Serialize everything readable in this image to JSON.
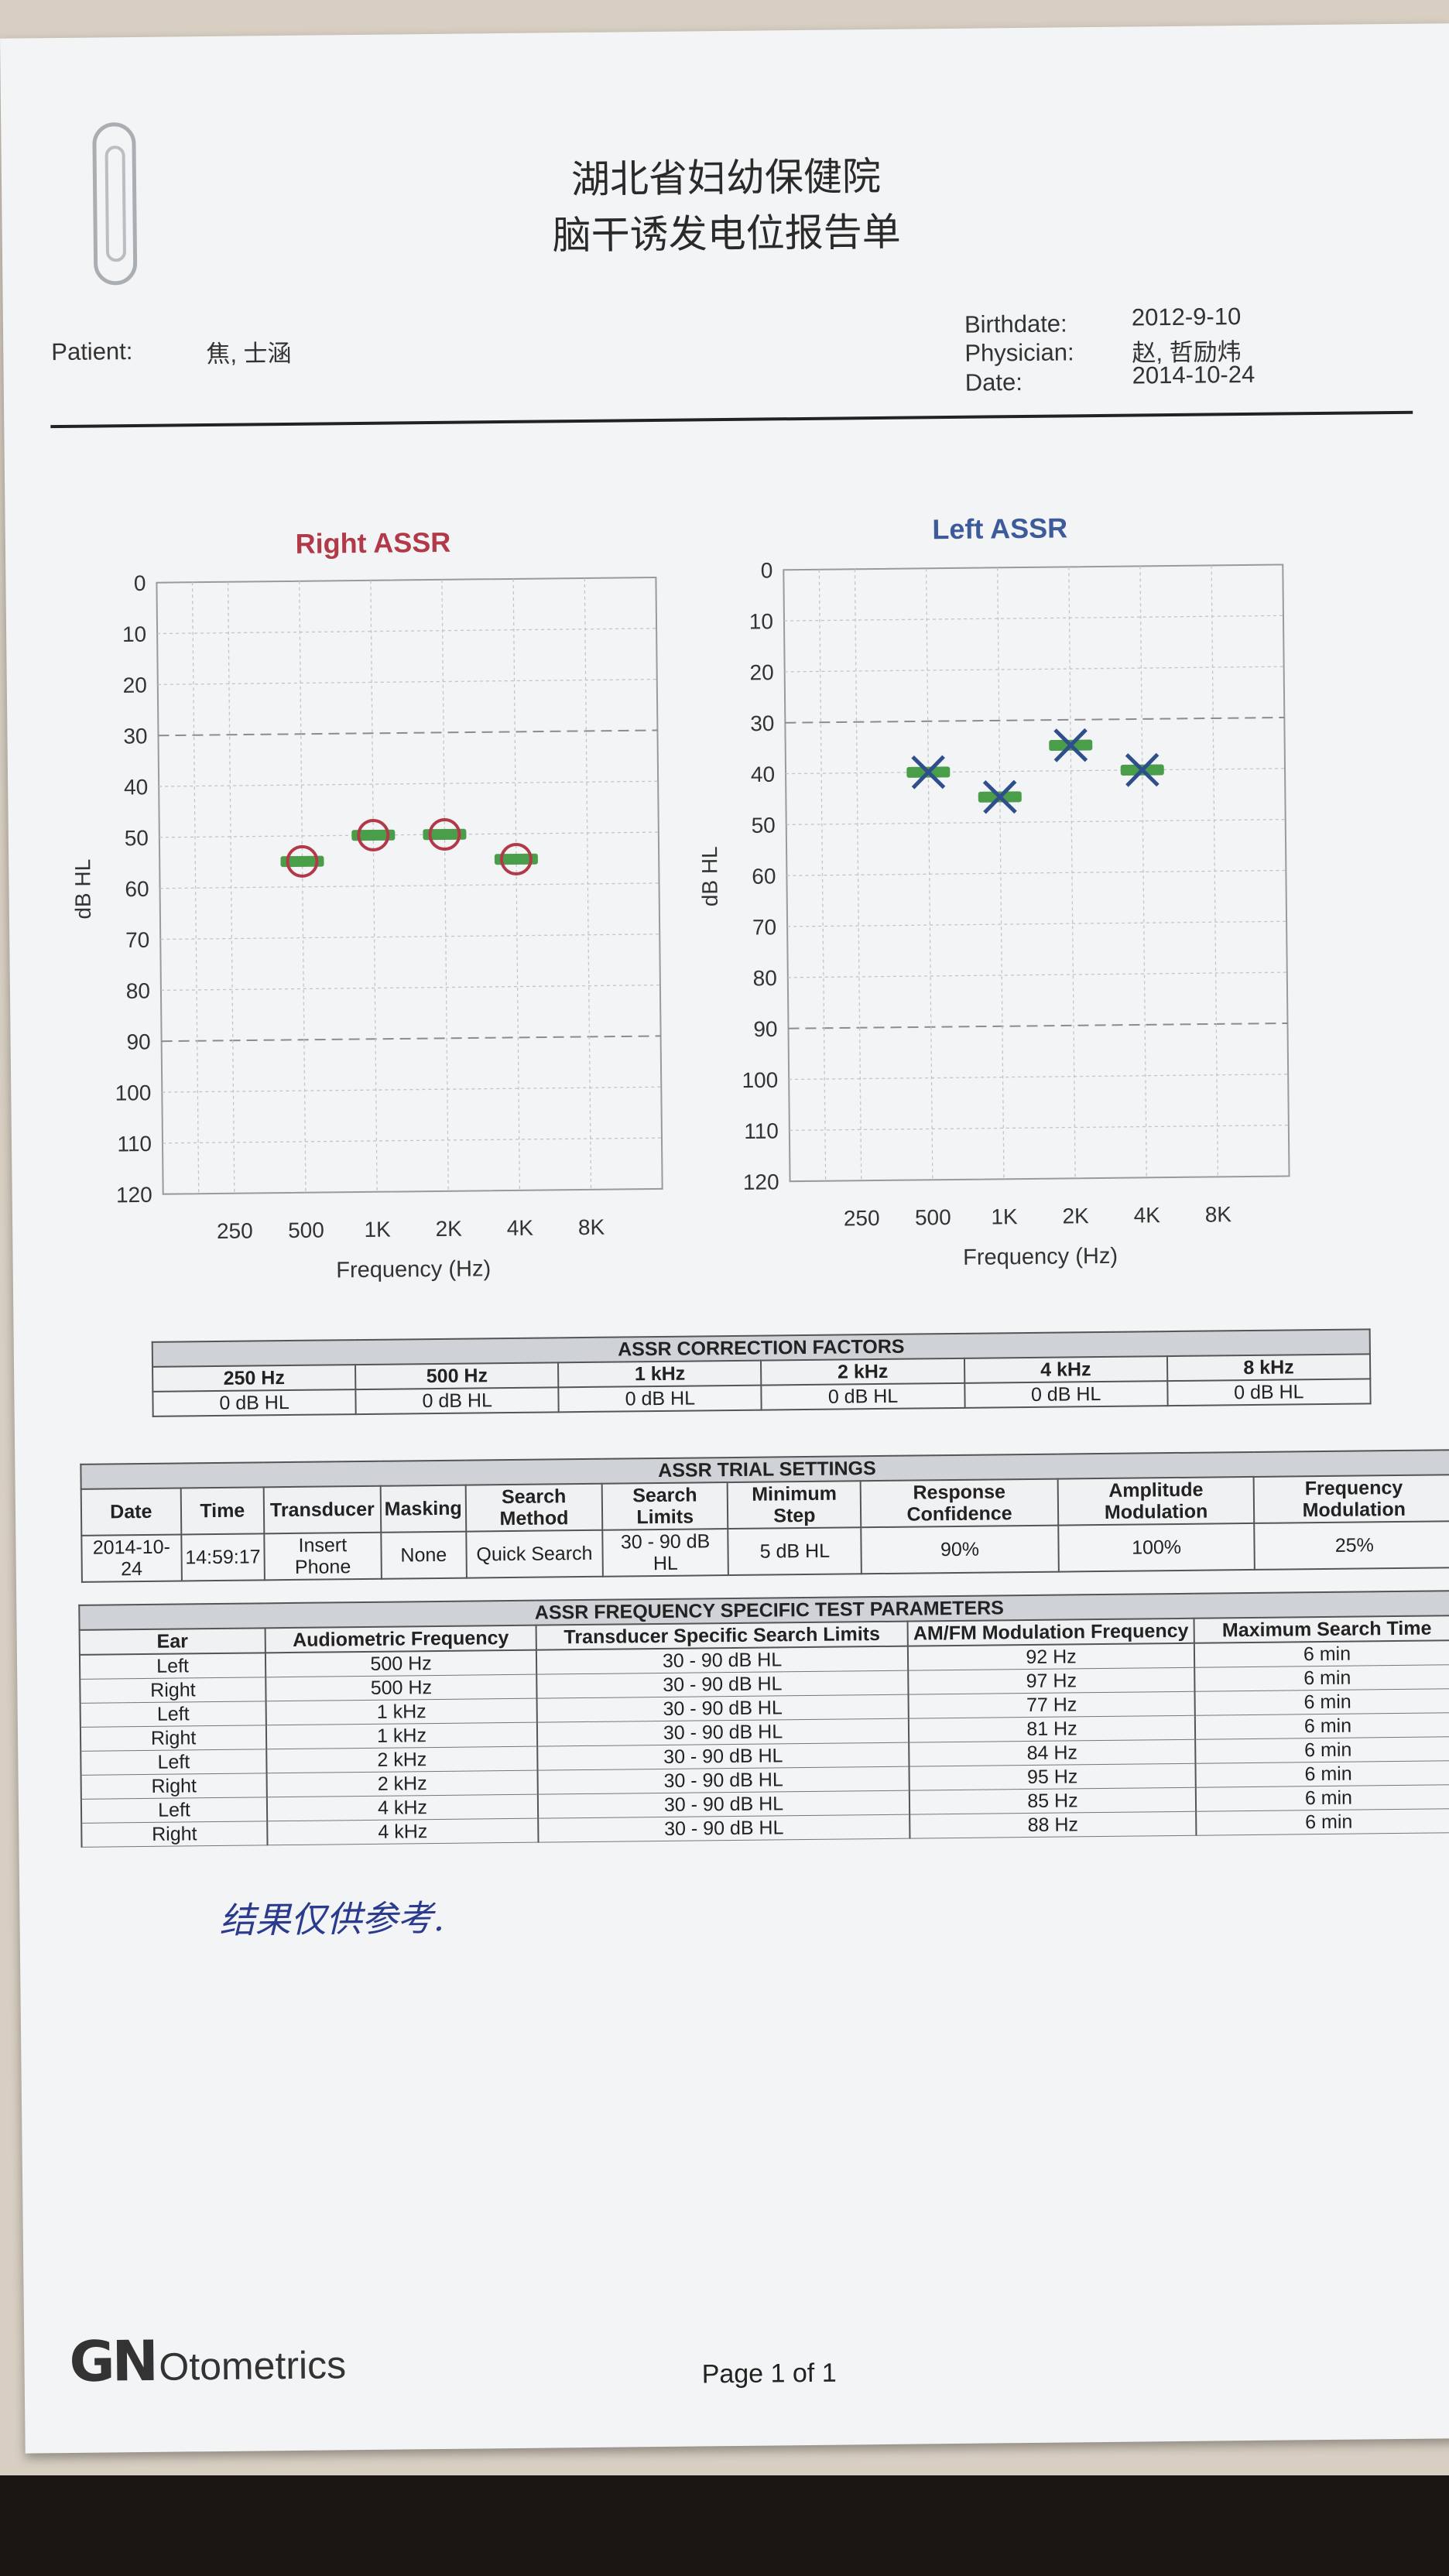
{
  "header": {
    "line1": "湖北省妇幼保健院",
    "line2": "脑干诱发电位报告单",
    "patient_label": "Patient:",
    "patient_value": "焦, 士涵",
    "birthdate_label": "Birthdate:",
    "birthdate_value": "2012-9-10",
    "physician_label": "Physician:",
    "physician_value": "赵, 哲励炜",
    "date_label": "Date:",
    "date_value": "2014-10-24"
  },
  "chart_data": [
    {
      "type": "scatter",
      "title": "Right ASSR",
      "xlabel": "Frequency (Hz)",
      "ylabel": "dB HL",
      "categories": [
        "250",
        "500",
        "1K",
        "2K",
        "4K",
        "8K"
      ],
      "yticks": [
        "0",
        "10",
        "20",
        "30",
        "40",
        "50",
        "60",
        "70",
        "80",
        "90",
        "100",
        "110",
        "120"
      ],
      "ylim": [
        0,
        120
      ],
      "y_inverted": true,
      "grid": true,
      "reference_lines": [
        30,
        90
      ],
      "series": [
        {
          "symbol": "circle",
          "color": "#b23a48",
          "points": [
            {
              "x": "500",
              "y": 55
            },
            {
              "x": "1K",
              "y": 50
            },
            {
              "x": "2K",
              "y": 50
            },
            {
              "x": "4K",
              "y": 55
            }
          ]
        }
      ],
      "title_color": "#b23a48"
    },
    {
      "type": "scatter",
      "title": "Left ASSR",
      "xlabel": "Frequency (Hz)",
      "ylabel": "dB HL",
      "categories": [
        "250",
        "500",
        "1K",
        "2K",
        "4K",
        "8K"
      ],
      "yticks": [
        "0",
        "10",
        "20",
        "30",
        "40",
        "50",
        "60",
        "70",
        "80",
        "90",
        "100",
        "110",
        "120"
      ],
      "ylim": [
        0,
        120
      ],
      "y_inverted": true,
      "grid": true,
      "reference_lines": [
        30,
        90
      ],
      "series": [
        {
          "symbol": "cross",
          "color": "#2f4e8c",
          "points": [
            {
              "x": "500",
              "y": 40
            },
            {
              "x": "1K",
              "y": 45
            },
            {
              "x": "2K",
              "y": 35
            },
            {
              "x": "4K",
              "y": 40
            }
          ]
        }
      ],
      "title_color": "#3d5a9a"
    }
  ],
  "colors": {
    "marker_bar": "#4a9e4a",
    "circle": "#b23a48",
    "cross": "#2f4e8c"
  },
  "correction": {
    "title": "ASSR CORRECTION FACTORS",
    "headers": [
      "250 Hz",
      "500 Hz",
      "1 kHz",
      "2 kHz",
      "4 kHz",
      "8 kHz"
    ],
    "values": [
      "0 dB HL",
      "0 dB HL",
      "0 dB HL",
      "0 dB HL",
      "0 dB HL",
      "0 dB HL"
    ]
  },
  "trial": {
    "title": "ASSR TRIAL SETTINGS",
    "headers": [
      "Date",
      "Time",
      "Transducer",
      "Masking",
      "Search Method",
      "Search Limits",
      "Minimum Step",
      "Response Confidence",
      "Amplitude Modulation",
      "Frequency Modulation"
    ],
    "row": [
      "2014-10-24",
      "14:59:17",
      "Insert Phone",
      "None",
      "Quick Search",
      "30 - 90 dB HL",
      "5 dB HL",
      "90%",
      "100%",
      "25%"
    ]
  },
  "freq": {
    "title": "ASSR FREQUENCY SPECIFIC TEST PARAMETERS",
    "headers": [
      "Ear",
      "Audiometric Frequency",
      "Transducer Specific Search Limits",
      "AM/FM Modulation Frequency",
      "Maximum Search Time"
    ],
    "rows": [
      [
        "Left",
        "500 Hz",
        "30 - 90 dB HL",
        "92 Hz",
        "6 min"
      ],
      [
        "Right",
        "500 Hz",
        "30 - 90 dB HL",
        "97 Hz",
        "6 min"
      ],
      [
        "Left",
        "1 kHz",
        "30 - 90 dB HL",
        "77 Hz",
        "6 min"
      ],
      [
        "Right",
        "1 kHz",
        "30 - 90 dB HL",
        "81 Hz",
        "6 min"
      ],
      [
        "Left",
        "2 kHz",
        "30 - 90 dB HL",
        "84 Hz",
        "6 min"
      ],
      [
        "Right",
        "2 kHz",
        "30 - 90 dB HL",
        "95 Hz",
        "6 min"
      ],
      [
        "Left",
        "4 kHz",
        "30 - 90 dB HL",
        "85 Hz",
        "6 min"
      ],
      [
        "Right",
        "4 kHz",
        "30 - 90 dB HL",
        "88 Hz",
        "6 min"
      ]
    ]
  },
  "note": "结果仅供参考.",
  "footer": {
    "logo_mark": "GN",
    "logo_text": "Otometrics",
    "page": "Page 1 of 1"
  }
}
